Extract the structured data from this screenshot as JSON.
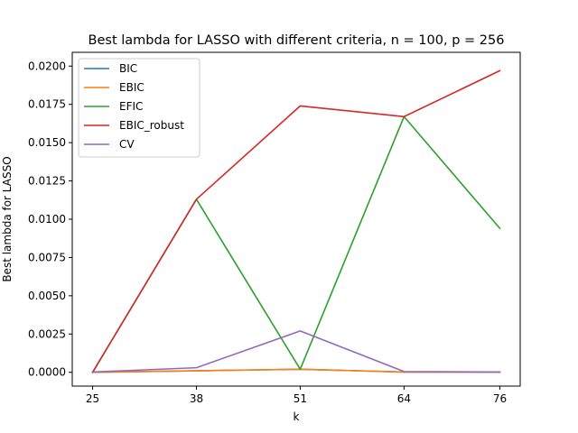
{
  "chart_data": {
    "type": "line",
    "title": "Best lambda for LASSO with different criteria, n = 100, p = 256",
    "xlabel": "k",
    "ylabel": "Best lambda for LASSO",
    "x": [
      25,
      38,
      51,
      64,
      76
    ],
    "xticks": [
      "25",
      "38",
      "51",
      "64",
      "76"
    ],
    "yticks": [
      "0.0000",
      "0.0025",
      "0.0050",
      "0.0075",
      "0.0100",
      "0.0125",
      "0.0150",
      "0.0175",
      "0.0200"
    ],
    "ylim": [
      -0.0009,
      0.0209
    ],
    "grid": false,
    "legend_position": "upper-left",
    "series": [
      {
        "name": "BIC",
        "color": "#1f77b4",
        "values": [
          0.0,
          0.0001,
          0.0002,
          2e-05,
          2e-05
        ]
      },
      {
        "name": "EBIC",
        "color": "#ff7f0e",
        "values": [
          0.0,
          0.0001,
          0.0002,
          2e-05,
          2e-05
        ]
      },
      {
        "name": "EFIC",
        "color": "#2ca02c",
        "values": [
          0.0,
          0.0113,
          0.0002,
          0.0167,
          0.0094
        ]
      },
      {
        "name": "EBIC_robust",
        "color": "#d62728",
        "values": [
          0.0,
          0.0113,
          0.0174,
          0.0167,
          0.0197
        ]
      },
      {
        "name": "CV",
        "color": "#9467bd",
        "values": [
          2e-05,
          0.0003,
          0.0027,
          5e-05,
          2e-05
        ]
      }
    ]
  }
}
